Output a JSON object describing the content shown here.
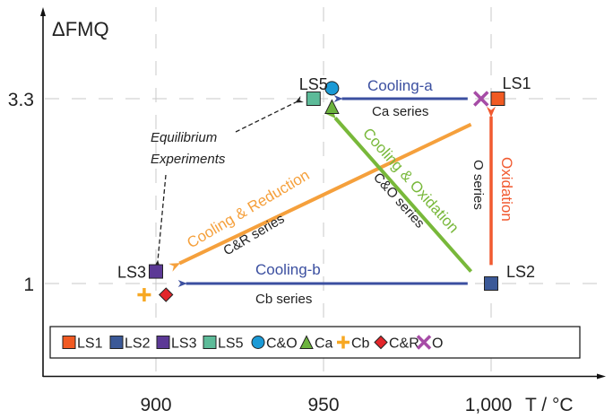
{
  "chart_data": {
    "type": "scatter",
    "title": "",
    "ylabel": "ΔFMQ",
    "xlabel": "T / °C",
    "xlim": [
      868,
      1032
    ],
    "ylim": [
      0.0,
      4.6
    ],
    "x_ticks": [
      900,
      950,
      1000
    ],
    "x_tick_labels": [
      "900",
      "950",
      "1,000"
    ],
    "y_ticks": [
      1,
      3.3
    ],
    "y_tick_labels": [
      "1",
      "3.3"
    ],
    "grid": "dashed",
    "colors": {
      "LS1": "#f15a22",
      "LS2": "#3b5998",
      "LS3": "#5c3996",
      "LS5": "#5dbb99",
      "CO": "#1b9ad6",
      "Ca": "#6cb33e",
      "Cb": "#f7a823",
      "CR": "#e3262b",
      "O": "#a64ca6",
      "cooling_blue": "#3b4fa0",
      "cooling_reduction": "#f5a03c",
      "cooling_oxidation": "#78b83a",
      "oxidation": "#f15a30"
    },
    "points": [
      {
        "name": "LS1",
        "marker": "square",
        "x": 1002,
        "y": 3.3,
        "label": "LS1"
      },
      {
        "name": "LS2",
        "marker": "square",
        "x": 1000,
        "y": 1.0,
        "label": "LS2"
      },
      {
        "name": "LS3",
        "marker": "square",
        "x": 900,
        "y": 1.15,
        "label": "LS3"
      },
      {
        "name": "LS5",
        "marker": "square",
        "x": 947,
        "y": 3.3,
        "label": "LS5"
      },
      {
        "name": "C&O",
        "marker": "circle",
        "x": 952.5,
        "y": 3.43,
        "label": ""
      },
      {
        "name": "Ca",
        "marker": "triangle",
        "x": 952.5,
        "y": 3.2,
        "label": ""
      },
      {
        "name": "Cb",
        "marker": "plus",
        "x": 896.5,
        "y": 0.86,
        "label": ""
      },
      {
        "name": "C&R",
        "marker": "diamond",
        "x": 903,
        "y": 0.86,
        "label": ""
      },
      {
        "name": "O",
        "marker": "x",
        "x": 997,
        "y": 3.3,
        "label": ""
      }
    ],
    "arrows": [
      {
        "name": "Cooling-a",
        "label": "Cooling-a",
        "series": "Ca series",
        "from": [
          993,
          3.3
        ],
        "to": [
          955.5,
          3.3
        ],
        "color": "cooling_blue"
      },
      {
        "name": "Cooling-b",
        "label": "Cooling-b",
        "series": "Cb series",
        "from": [
          993,
          1.0
        ],
        "to": [
          909,
          1.0
        ],
        "color": "cooling_blue"
      },
      {
        "name": "Cooling & Reduction",
        "label": "Cooling & Reduction",
        "series": "C&R series",
        "from": [
          994,
          2.98
        ],
        "to": [
          907,
          1.25
        ],
        "color": "cooling_reduction"
      },
      {
        "name": "Cooling & Oxidation",
        "label": "Cooling & Oxidation",
        "series": "C&O series",
        "from": [
          994,
          1.15
        ],
        "to": [
          953.5,
          3.06
        ],
        "color": "cooling_oxidation"
      },
      {
        "name": "Oxidation",
        "label": "Oxidation",
        "series": "O series",
        "from": [
          1000,
          1.23
        ],
        "to": [
          1000,
          3.08
        ],
        "color": "oxidation"
      }
    ],
    "annotation": {
      "text_line1": "Equilibrium",
      "text_line2": "Experiments"
    },
    "legend": {
      "placement": "bottom",
      "entries": [
        {
          "label": "LS1",
          "marker": "square",
          "color": "LS1"
        },
        {
          "label": "LS2",
          "marker": "square",
          "color": "LS2"
        },
        {
          "label": "LS3",
          "marker": "square",
          "color": "LS3"
        },
        {
          "label": "LS5",
          "marker": "square",
          "color": "LS5"
        },
        {
          "label": "C&O",
          "marker": "circle",
          "color": "CO"
        },
        {
          "label": "Ca",
          "marker": "triangle",
          "color": "Ca"
        },
        {
          "label": "Cb",
          "marker": "plus",
          "color": "Cb"
        },
        {
          "label": "C&R",
          "marker": "diamond",
          "color": "CR"
        },
        {
          "label": "O",
          "marker": "x",
          "color": "O"
        }
      ]
    }
  }
}
